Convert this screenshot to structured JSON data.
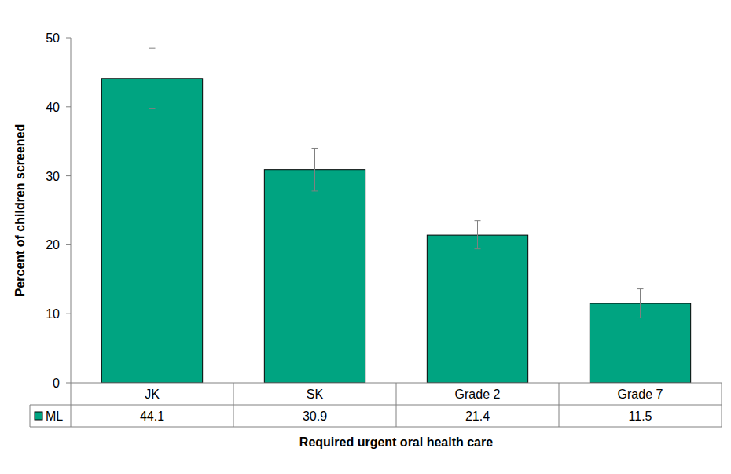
{
  "chart_data": {
    "type": "bar",
    "x_label": "Required urgent oral health care",
    "y_label": "Percent of children screened",
    "categories": [
      "JK",
      "SK",
      "Grade 2",
      "Grade 7"
    ],
    "series": [
      {
        "name": "ML",
        "color": "#00a481",
        "values": [
          44.1,
          30.9,
          21.4,
          11.5
        ],
        "ci_low": [
          39.7,
          27.8,
          19.4,
          9.4
        ],
        "ci_high": [
          48.5,
          34.0,
          23.5,
          13.6
        ]
      }
    ],
    "ylim": [
      0,
      50
    ],
    "yticks": [
      0,
      10,
      20,
      30,
      40,
      50
    ],
    "grid": false
  }
}
